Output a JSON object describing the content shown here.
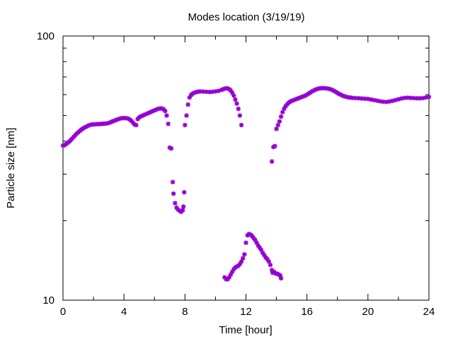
{
  "chart_data": {
    "type": "scatter",
    "title": "Modes location (3/19/19)",
    "xlabel": "Time [hour]",
    "ylabel": "Particle size [nm]",
    "xlim": [
      0,
      24
    ],
    "ylim": [
      10,
      100
    ],
    "yscale": "log",
    "xticks": [
      0,
      4,
      8,
      12,
      16,
      20,
      24
    ],
    "xtick_labels": [
      "0",
      "4",
      "8",
      "12",
      "16",
      "20",
      "24"
    ],
    "yticks": [
      10,
      100
    ],
    "ytick_labels": [
      "10",
      "100"
    ],
    "grid": false,
    "marker": "asterisk",
    "series": [
      {
        "color": "#9400d3",
        "points": [
          [
            0.0,
            38.5
          ],
          [
            0.1,
            38.6
          ],
          [
            0.2,
            39.0
          ],
          [
            0.3,
            39.4
          ],
          [
            0.4,
            39.8
          ],
          [
            0.5,
            40.3
          ],
          [
            0.6,
            40.9
          ],
          [
            0.7,
            41.5
          ],
          [
            0.8,
            42.1
          ],
          [
            0.9,
            42.7
          ],
          [
            1.0,
            43.2
          ],
          [
            1.1,
            43.7
          ],
          [
            1.2,
            44.2
          ],
          [
            1.3,
            44.6
          ],
          [
            1.4,
            45.0
          ],
          [
            1.5,
            45.3
          ],
          [
            1.6,
            45.6
          ],
          [
            1.7,
            45.9
          ],
          [
            1.8,
            46.1
          ],
          [
            1.9,
            46.2
          ],
          [
            2.0,
            46.3
          ],
          [
            2.1,
            46.3
          ],
          [
            2.2,
            46.4
          ],
          [
            2.3,
            46.4
          ],
          [
            2.4,
            46.4
          ],
          [
            2.5,
            46.5
          ],
          [
            2.6,
            46.5
          ],
          [
            2.7,
            46.6
          ],
          [
            2.8,
            46.6
          ],
          [
            2.9,
            46.7
          ],
          [
            3.0,
            46.9
          ],
          [
            3.1,
            47.1
          ],
          [
            3.2,
            47.4
          ],
          [
            3.3,
            47.6
          ],
          [
            3.4,
            47.9
          ],
          [
            3.5,
            48.1
          ],
          [
            3.6,
            48.4
          ],
          [
            3.7,
            48.6
          ],
          [
            3.8,
            48.8
          ],
          [
            3.9,
            48.9
          ],
          [
            4.0,
            48.9
          ],
          [
            4.1,
            48.9
          ],
          [
            4.2,
            48.8
          ],
          [
            4.3,
            48.6
          ],
          [
            4.4,
            48.2
          ],
          [
            4.5,
            47.6
          ],
          [
            4.6,
            46.9
          ],
          [
            4.7,
            46.2
          ],
          [
            4.8,
            46.0
          ],
          [
            4.9,
            48.5
          ],
          [
            5.0,
            49.2
          ],
          [
            5.1,
            49.6
          ],
          [
            5.2,
            49.9
          ],
          [
            5.3,
            50.2
          ],
          [
            5.4,
            50.5
          ],
          [
            5.5,
            50.8
          ],
          [
            5.6,
            51.1
          ],
          [
            5.7,
            51.4
          ],
          [
            5.8,
            51.7
          ],
          [
            5.9,
            52.0
          ],
          [
            6.0,
            52.3
          ],
          [
            6.1,
            52.6
          ],
          [
            6.2,
            52.9
          ],
          [
            6.3,
            53.1
          ],
          [
            6.4,
            53.2
          ],
          [
            6.5,
            53.1
          ],
          [
            6.6,
            52.8
          ],
          [
            6.7,
            52.0
          ],
          [
            6.8,
            50.0
          ],
          [
            6.9,
            46.5
          ],
          [
            7.0,
            37.8
          ],
          [
            7.1,
            37.5
          ],
          [
            7.2,
            28.0
          ],
          [
            7.25,
            25.3
          ],
          [
            7.35,
            23.3
          ],
          [
            7.45,
            22.4
          ],
          [
            7.55,
            22.0
          ],
          [
            7.65,
            21.8
          ],
          [
            7.75,
            21.6
          ],
          [
            7.85,
            21.9
          ],
          [
            7.9,
            22.6
          ],
          [
            7.95,
            25.6
          ],
          [
            8.0,
            46.0
          ],
          [
            8.1,
            50.0
          ],
          [
            8.2,
            55.0
          ],
          [
            8.3,
            58.5
          ],
          [
            8.4,
            59.8
          ],
          [
            8.5,
            60.5
          ],
          [
            8.6,
            60.9
          ],
          [
            8.7,
            61.2
          ],
          [
            8.8,
            61.5
          ],
          [
            8.9,
            61.6
          ],
          [
            9.0,
            61.7
          ],
          [
            9.2,
            61.6
          ],
          [
            9.4,
            61.5
          ],
          [
            9.6,
            61.4
          ],
          [
            9.8,
            61.5
          ],
          [
            10.0,
            61.7
          ],
          [
            10.2,
            62.0
          ],
          [
            10.4,
            62.5
          ],
          [
            10.5,
            62.9
          ],
          [
            10.6,
            63.2
          ],
          [
            10.7,
            63.4
          ],
          [
            10.8,
            63.3
          ],
          [
            10.9,
            62.9
          ],
          [
            11.0,
            62.2
          ],
          [
            11.1,
            61.0
          ],
          [
            11.2,
            59.5
          ],
          [
            11.3,
            57.5
          ],
          [
            11.4,
            55.5
          ],
          [
            11.5,
            53.0
          ],
          [
            11.6,
            50.0
          ],
          [
            11.7,
            46.0
          ],
          [
            10.6,
            12.2
          ],
          [
            10.7,
            12.0
          ],
          [
            10.8,
            12.0
          ],
          [
            10.9,
            12.2
          ],
          [
            11.0,
            12.5
          ],
          [
            11.1,
            12.8
          ],
          [
            11.2,
            13.1
          ],
          [
            11.3,
            13.3
          ],
          [
            11.4,
            13.4
          ],
          [
            11.5,
            13.5
          ],
          [
            11.6,
            13.7
          ],
          [
            11.7,
            14.0
          ],
          [
            11.8,
            14.4
          ],
          [
            11.9,
            14.9
          ],
          [
            12.0,
            16.5
          ],
          [
            12.1,
            17.6
          ],
          [
            12.2,
            17.8
          ],
          [
            12.3,
            17.7
          ],
          [
            12.4,
            17.5
          ],
          [
            12.5,
            17.2
          ],
          [
            12.6,
            16.9
          ],
          [
            12.7,
            16.5
          ],
          [
            12.8,
            16.1
          ],
          [
            12.9,
            15.8
          ],
          [
            13.0,
            15.5
          ],
          [
            13.1,
            15.1
          ],
          [
            13.2,
            14.8
          ],
          [
            13.3,
            14.5
          ],
          [
            13.4,
            14.3
          ],
          [
            13.5,
            14.0
          ],
          [
            13.6,
            13.6
          ],
          [
            13.7,
            13.0
          ],
          [
            13.75,
            12.7
          ],
          [
            13.85,
            12.8
          ],
          [
            13.95,
            12.6
          ],
          [
            14.05,
            12.6
          ],
          [
            14.15,
            12.5
          ],
          [
            14.25,
            12.4
          ],
          [
            14.3,
            12.1
          ],
          [
            13.7,
            33.5
          ],
          [
            13.8,
            38.0
          ],
          [
            13.9,
            38.3
          ],
          [
            14.0,
            44.5
          ],
          [
            14.1,
            46.0
          ],
          [
            14.2,
            47.5
          ],
          [
            14.3,
            49.5
          ],
          [
            14.4,
            51.5
          ],
          [
            14.5,
            53.0
          ],
          [
            14.6,
            54.2
          ],
          [
            14.7,
            55.1
          ],
          [
            14.8,
            55.9
          ],
          [
            14.9,
            56.4
          ],
          [
            15.0,
            56.8
          ],
          [
            15.1,
            57.1
          ],
          [
            15.2,
            57.4
          ],
          [
            15.3,
            57.7
          ],
          [
            15.4,
            58.0
          ],
          [
            15.5,
            58.3
          ],
          [
            15.6,
            58.6
          ],
          [
            15.7,
            58.9
          ],
          [
            15.8,
            59.2
          ],
          [
            15.9,
            59.5
          ],
          [
            16.0,
            60.0
          ],
          [
            16.1,
            60.5
          ],
          [
            16.2,
            61.0
          ],
          [
            16.3,
            61.5
          ],
          [
            16.4,
            62.0
          ],
          [
            16.5,
            62.4
          ],
          [
            16.6,
            62.8
          ],
          [
            16.7,
            63.1
          ],
          [
            16.8,
            63.3
          ],
          [
            16.9,
            63.4
          ],
          [
            17.0,
            63.5
          ],
          [
            17.1,
            63.5
          ],
          [
            17.2,
            63.4
          ],
          [
            17.3,
            63.3
          ],
          [
            17.4,
            63.2
          ],
          [
            17.5,
            63.0
          ],
          [
            17.6,
            62.7
          ],
          [
            17.7,
            62.3
          ],
          [
            17.8,
            61.9
          ],
          [
            17.9,
            61.4
          ],
          [
            18.0,
            60.9
          ],
          [
            18.1,
            60.4
          ],
          [
            18.2,
            60.0
          ],
          [
            18.3,
            59.6
          ],
          [
            18.4,
            59.3
          ],
          [
            18.5,
            59.0
          ],
          [
            18.6,
            58.8
          ],
          [
            18.7,
            58.6
          ],
          [
            18.8,
            58.5
          ],
          [
            18.9,
            58.4
          ],
          [
            19.0,
            58.3
          ],
          [
            19.2,
            58.2
          ],
          [
            19.4,
            58.1
          ],
          [
            19.6,
            58.0
          ],
          [
            19.8,
            57.9
          ],
          [
            20.0,
            57.8
          ],
          [
            20.2,
            57.5
          ],
          [
            20.4,
            57.2
          ],
          [
            20.6,
            56.9
          ],
          [
            20.8,
            56.6
          ],
          [
            21.0,
            56.4
          ],
          [
            21.2,
            56.3
          ],
          [
            21.4,
            56.5
          ],
          [
            21.6,
            56.8
          ],
          [
            21.8,
            57.2
          ],
          [
            22.0,
            57.6
          ],
          [
            22.2,
            58.0
          ],
          [
            22.4,
            58.3
          ],
          [
            22.6,
            58.4
          ],
          [
            22.8,
            58.3
          ],
          [
            23.0,
            58.2
          ],
          [
            23.2,
            58.1
          ],
          [
            23.4,
            58.1
          ],
          [
            23.6,
            58.2
          ],
          [
            23.8,
            58.5
          ],
          [
            24.0,
            58.8
          ]
        ]
      }
    ]
  }
}
